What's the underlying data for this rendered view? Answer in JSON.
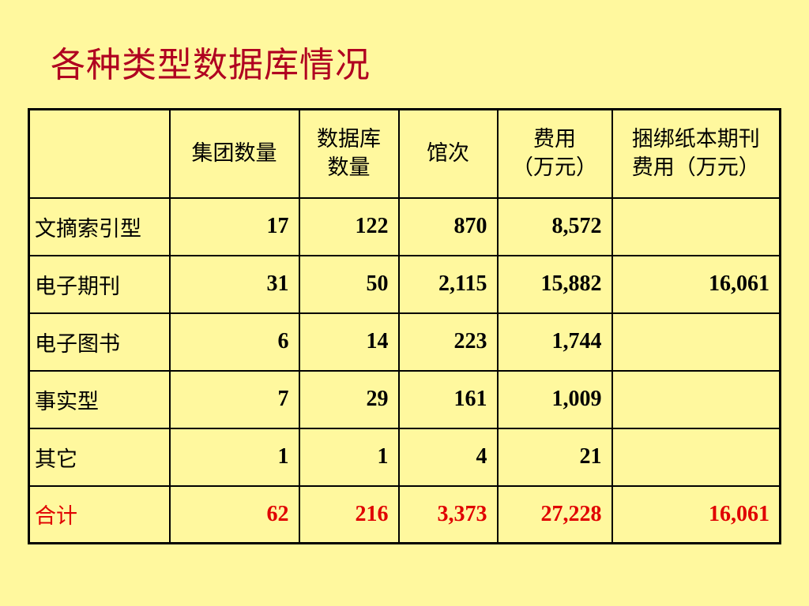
{
  "title": "各种类型数据库情况",
  "table": {
    "headers": [
      "",
      "集团数量",
      "数据库\n数量",
      "馆次",
      "费用\n（万元）",
      "捆绑纸本期刊\n费用（万元）"
    ],
    "rows": [
      {
        "label": "文摘索引型",
        "values": [
          "17",
          "122",
          "870",
          "8,572",
          ""
        ]
      },
      {
        "label": "电子期刊",
        "values": [
          "31",
          "50",
          "2,115",
          "15,882",
          "16,061"
        ]
      },
      {
        "label": "电子图书",
        "values": [
          "6",
          "14",
          "223",
          "1,744",
          ""
        ]
      },
      {
        "label": "事实型",
        "values": [
          "7",
          "29",
          "161",
          "1,009",
          ""
        ]
      },
      {
        "label": "其它",
        "values": [
          "1",
          "1",
          "4",
          "21",
          ""
        ]
      }
    ],
    "total": {
      "label": "合计",
      "values": [
        "62",
        "216",
        "3,373",
        "27,228",
        "16,061"
      ]
    }
  },
  "colors": {
    "background": "#FFF89E",
    "title": "#B00020",
    "total": "#E00000"
  }
}
